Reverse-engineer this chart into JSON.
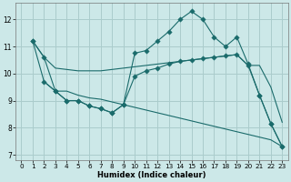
{
  "xlabel": "Humidex (Indice chaleur)",
  "bg_color": "#cce8e8",
  "grid_color": "#aacccc",
  "line_color": "#1a6b6b",
  "xlim": [
    -0.5,
    23.5
  ],
  "ylim": [
    6.8,
    12.6
  ],
  "yticks": [
    7,
    8,
    9,
    10,
    11,
    12
  ],
  "xticks": [
    0,
    1,
    2,
    3,
    4,
    5,
    6,
    7,
    8,
    9,
    10,
    11,
    12,
    13,
    14,
    15,
    16,
    17,
    18,
    19,
    20,
    21,
    22,
    23
  ],
  "series": [
    {
      "x": [
        1,
        2,
        3,
        4,
        5,
        6,
        7,
        8,
        9,
        10,
        11,
        12,
        13,
        14,
        15,
        16,
        17,
        18,
        19,
        20,
        21,
        22,
        23
      ],
      "y": [
        11.2,
        10.6,
        9.35,
        9.0,
        9.0,
        8.8,
        8.7,
        8.55,
        8.85,
        10.75,
        10.85,
        11.2,
        11.55,
        12.0,
        12.3,
        12.0,
        11.35,
        11.0,
        11.35,
        10.35,
        9.2,
        8.15,
        7.3
      ],
      "marker": true,
      "markersize": 2.8
    },
    {
      "x": [
        1,
        2,
        3,
        4,
        5,
        6,
        7,
        8,
        9,
        10,
        11,
        12,
        13,
        14,
        15,
        16,
        17,
        18,
        19,
        20,
        21,
        22,
        23
      ],
      "y": [
        11.2,
        10.6,
        10.2,
        10.15,
        10.1,
        10.1,
        10.1,
        10.15,
        10.2,
        10.25,
        10.3,
        10.35,
        10.4,
        10.45,
        10.5,
        10.55,
        10.6,
        10.65,
        10.7,
        10.3,
        10.3,
        9.5,
        8.2
      ],
      "marker": false,
      "markersize": 0
    },
    {
      "x": [
        2,
        3,
        4,
        5,
        6,
        7,
        8,
        9,
        10,
        11,
        12,
        13,
        14,
        15,
        16,
        17,
        18,
        19,
        20,
        21,
        22,
        23
      ],
      "y": [
        9.7,
        9.35,
        9.35,
        9.2,
        9.1,
        9.05,
        8.95,
        8.85,
        8.75,
        8.65,
        8.55,
        8.45,
        8.35,
        8.25,
        8.15,
        8.05,
        7.95,
        7.85,
        7.75,
        7.65,
        7.55,
        7.3
      ],
      "marker": false,
      "markersize": 0
    },
    {
      "x": [
        1,
        2,
        3,
        4,
        5,
        6,
        7,
        8,
        9,
        10,
        11,
        12,
        13,
        14,
        15,
        16,
        17,
        18,
        19,
        20,
        21,
        22,
        23
      ],
      "y": [
        11.2,
        9.7,
        9.35,
        9.0,
        9.0,
        8.8,
        8.7,
        8.55,
        8.85,
        9.9,
        10.1,
        10.2,
        10.35,
        10.45,
        10.5,
        10.55,
        10.6,
        10.65,
        10.7,
        10.3,
        9.2,
        8.15,
        7.3
      ],
      "marker": true,
      "markersize": 2.8
    }
  ]
}
